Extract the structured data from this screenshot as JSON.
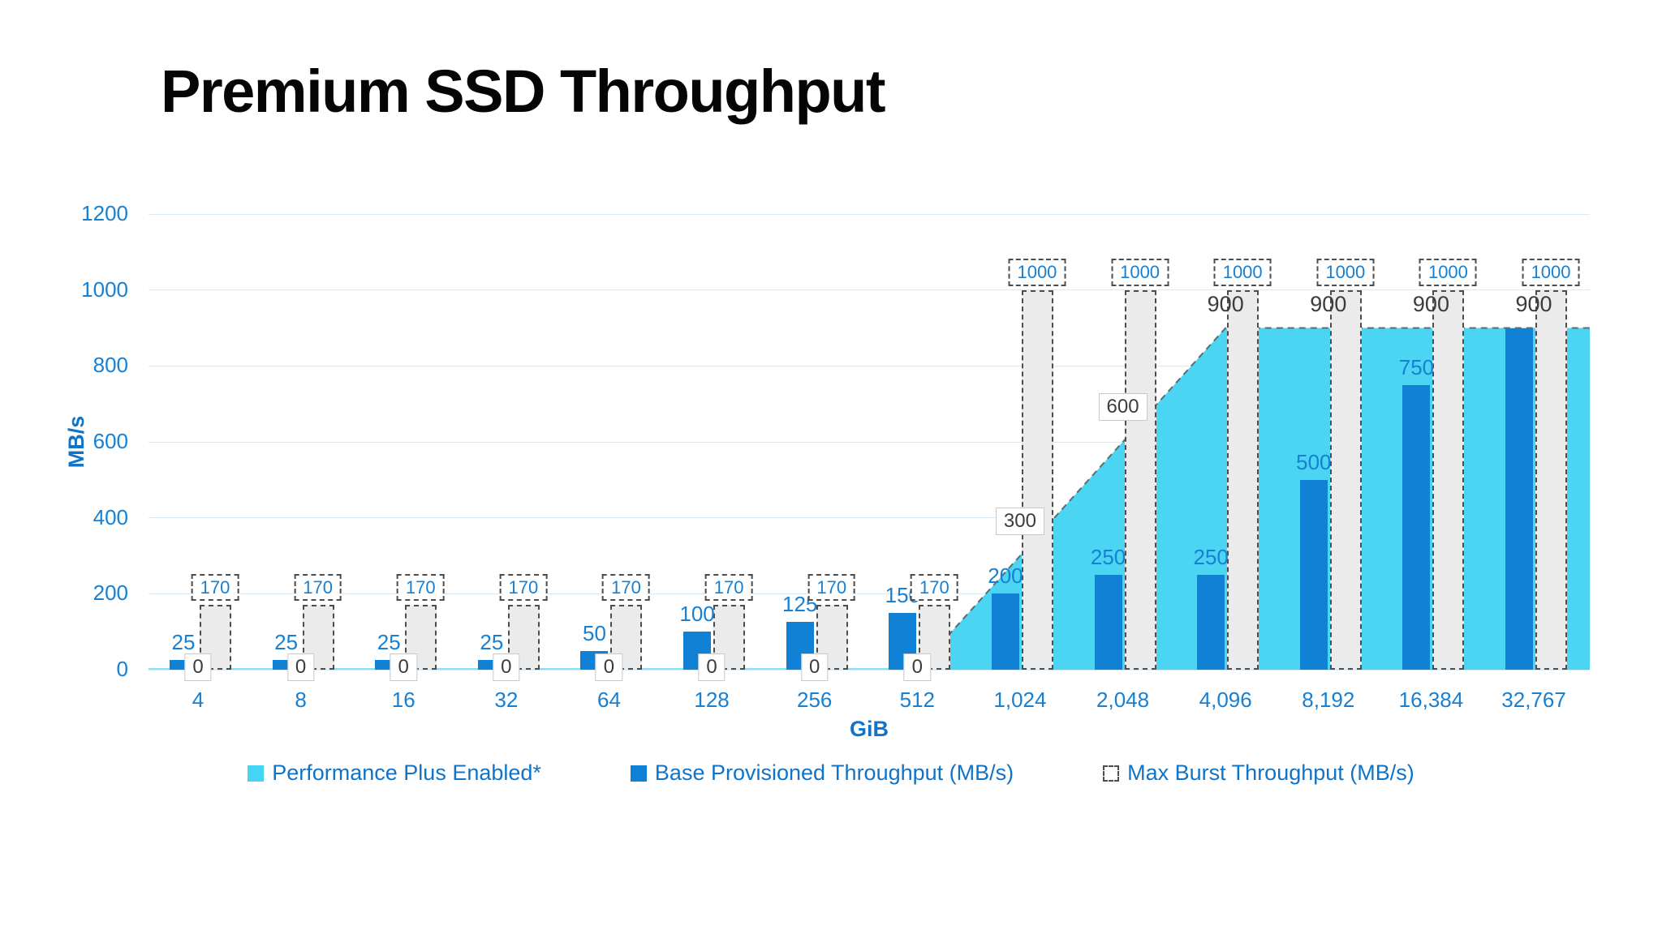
{
  "title": "Premium SSD Throughput",
  "colors": {
    "title_text": "#050505",
    "axis_text_blue": "#1780d2",
    "axis_title_blue": "#0f74c8",
    "base_bar_blue": "#1181d6",
    "performance_plus_cyan": "#45d4f2",
    "burst_bar_fill": "#ebebeb",
    "dashed_border": "#4d4d4d",
    "gridline": "#d9eaf6",
    "perf_label_text": "#3c3c3c"
  },
  "chart_data": {
    "type": "bar",
    "subtype": "grouped bars with overlaid area series",
    "title": "Premium SSD Throughput",
    "xlabel": "GiB",
    "ylabel": "MB/s",
    "ylim": [
      0,
      1200
    ],
    "ytick_step": 200,
    "ytick_labels": [
      "0",
      "200",
      "400",
      "600",
      "800",
      "1000",
      "1200"
    ],
    "grid": true,
    "legend_position": "bottom",
    "categories": [
      "4",
      "8",
      "16",
      "32",
      "64",
      "128",
      "256",
      "512",
      "1,024",
      "2,048",
      "4,096",
      "8,192",
      "16,384",
      "32,767"
    ],
    "series": [
      {
        "name": "Performance Plus Enabled*",
        "type": "area",
        "color": "#45d4f2",
        "values": [
          0,
          0,
          0,
          0,
          0,
          0,
          0,
          0,
          300,
          600,
          900,
          900,
          900,
          900
        ],
        "labels": [
          "0",
          "0",
          "0",
          "0",
          "0",
          "0",
          "0",
          "0",
          "300",
          "600",
          "900",
          "900",
          "900",
          "900"
        ],
        "boxed_labels": [
          true,
          true,
          true,
          true,
          true,
          true,
          true,
          true,
          true,
          true,
          false,
          false,
          false,
          false
        ]
      },
      {
        "name": "Base Provisioned Throughput (MB/s)",
        "type": "bar",
        "color": "#1181d6",
        "values": [
          25,
          25,
          25,
          25,
          50,
          100,
          125,
          150,
          200,
          250,
          250,
          500,
          750,
          900
        ],
        "labels": [
          "25",
          "25",
          "25",
          "25",
          "50",
          "100",
          "125",
          "150",
          "200",
          "250",
          "250",
          "500",
          "750",
          ""
        ]
      },
      {
        "name": "Max Burst Throughput (MB/s)",
        "type": "bar-dashed",
        "color": "#ebebeb",
        "values": [
          170,
          170,
          170,
          170,
          170,
          170,
          170,
          170,
          1000,
          1000,
          1000,
          1000,
          1000,
          1000
        ],
        "labels": [
          "170",
          "170",
          "170",
          "170",
          "170",
          "170",
          "170",
          "170",
          "1000",
          "1000",
          "1000",
          "1000",
          "1000",
          "1000"
        ]
      }
    ]
  }
}
